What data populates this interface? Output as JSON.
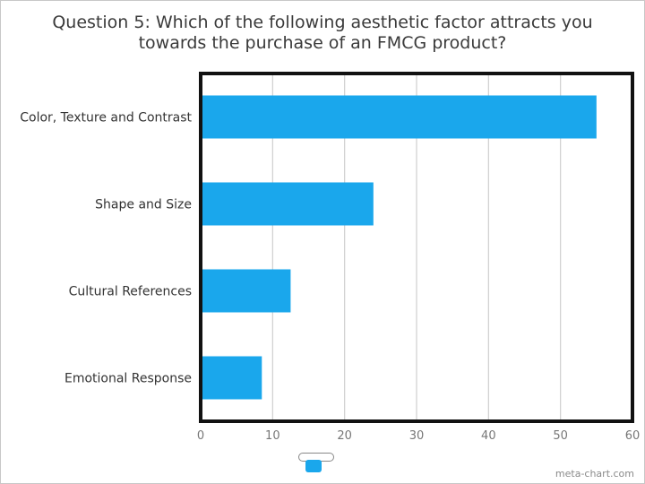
{
  "chart_data": {
    "type": "bar",
    "orientation": "horizontal",
    "title": "Question 5: Which of the following aesthetic factor attracts you\ntowards the purchase of an FMCG product?",
    "categories": [
      "Color, Texture and Contrast",
      "Shape and Size",
      "Cultural References",
      "Emotional Response"
    ],
    "values": [
      55,
      24,
      12.5,
      8.5
    ],
    "xlim": [
      0,
      60
    ],
    "xticks": [
      0,
      10,
      20,
      30,
      40,
      50,
      60
    ],
    "grid": true,
    "bar_color": "#1aa7ec",
    "legend": {
      "placement": "bottom-center",
      "entries": [
        ""
      ]
    }
  },
  "watermark": "meta-chart.com"
}
